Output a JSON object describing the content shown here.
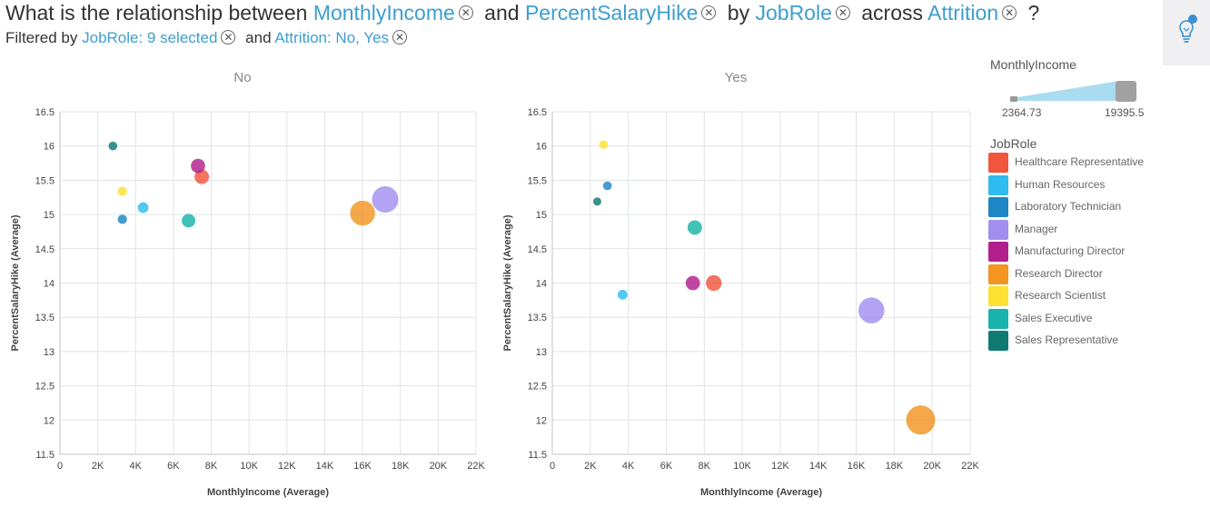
{
  "question": {
    "p1": "What is the relationship between",
    "f1": "MonthlyIncome",
    "p2": "and",
    "f2": "PercentSalaryHike",
    "p3": "by",
    "f3": "JobRole",
    "p4": "across",
    "f4": "Attrition",
    "end": "?"
  },
  "filters": {
    "prefix": "Filtered by",
    "f1": "JobRole: 9 selected",
    "joiner": "and",
    "f2": "Attrition: No, Yes"
  },
  "icons": {
    "remove": "circle-x-icon",
    "insight": "lightbulb-icon"
  },
  "size_legend": {
    "title": "MonthlyIncome",
    "min_label": "2364.73",
    "max_label": "19395.5"
  },
  "color_legend": {
    "title": "JobRole",
    "items": [
      {
        "label": "Healthcare Representative",
        "color": "#f0553d"
      },
      {
        "label": "Human Resources",
        "color": "#2ebbef"
      },
      {
        "label": "Laboratory Technician",
        "color": "#1d86c4"
      },
      {
        "label": "Manager",
        "color": "#a18ff0"
      },
      {
        "label": "Manufacturing Director",
        "color": "#b21f8c"
      },
      {
        "label": "Research Director",
        "color": "#f29521"
      },
      {
        "label": "Research Scientist",
        "color": "#fde030"
      },
      {
        "label": "Sales Executive",
        "color": "#18b3aa"
      },
      {
        "label": "Sales Representative",
        "color": "#0e7a72"
      }
    ]
  },
  "chart_data": [
    {
      "type": "scatter",
      "title": "No",
      "xlabel": "MonthlyIncome (Average)",
      "ylabel": "PercentSalaryHike (Average)",
      "xlim": [
        0,
        22000
      ],
      "ylim": [
        11.5,
        16.5
      ],
      "x_ticks": [
        "0",
        "2K",
        "4K",
        "6K",
        "8K",
        "10K",
        "12K",
        "14K",
        "16K",
        "18K",
        "20K",
        "22K"
      ],
      "y_ticks": [
        "11.5",
        "12",
        "12.5",
        "13",
        "13.5",
        "14",
        "14.5",
        "15",
        "15.5",
        "16",
        "16.5"
      ],
      "grid": true,
      "points": [
        {
          "series": "Healthcare Representative",
          "x": 7500,
          "y": 15.55,
          "size": 7500
        },
        {
          "series": "Human Resources",
          "x": 4400,
          "y": 15.1,
          "size": 4400
        },
        {
          "series": "Laboratory Technician",
          "x": 3300,
          "y": 14.93,
          "size": 3300
        },
        {
          "series": "Manager",
          "x": 17200,
          "y": 15.22,
          "size": 17200
        },
        {
          "series": "Manufacturing Director",
          "x": 7300,
          "y": 15.71,
          "size": 7300
        },
        {
          "series": "Research Director",
          "x": 16000,
          "y": 15.02,
          "size": 16000
        },
        {
          "series": "Research Scientist",
          "x": 3300,
          "y": 15.34,
          "size": 3300
        },
        {
          "series": "Sales Executive",
          "x": 6800,
          "y": 14.91,
          "size": 6800
        },
        {
          "series": "Sales Representative",
          "x": 2800,
          "y": 16.0,
          "size": 2800
        }
      ]
    },
    {
      "type": "scatter",
      "title": "Yes",
      "xlabel": "MonthlyIncome (Average)",
      "ylabel": "PercentSalaryHike (Average)",
      "xlim": [
        0,
        22000
      ],
      "ylim": [
        11.5,
        16.5
      ],
      "x_ticks": [
        "0",
        "2K",
        "4K",
        "6K",
        "8K",
        "10K",
        "12K",
        "14K",
        "16K",
        "18K",
        "20K",
        "22K"
      ],
      "y_ticks": [
        "11.5",
        "12",
        "12.5",
        "13",
        "13.5",
        "14",
        "14.5",
        "15",
        "15.5",
        "16",
        "16.5"
      ],
      "grid": true,
      "points": [
        {
          "series": "Healthcare Representative",
          "x": 8500,
          "y": 14.0,
          "size": 8500
        },
        {
          "series": "Human Resources",
          "x": 3700,
          "y": 13.83,
          "size": 3700
        },
        {
          "series": "Laboratory Technician",
          "x": 2900,
          "y": 15.42,
          "size": 2900
        },
        {
          "series": "Manager",
          "x": 16800,
          "y": 13.6,
          "size": 16800
        },
        {
          "series": "Manufacturing Director",
          "x": 7400,
          "y": 14.0,
          "size": 7400
        },
        {
          "series": "Research Director",
          "x": 19395.5,
          "y": 12.0,
          "size": 19395.5
        },
        {
          "series": "Research Scientist",
          "x": 2700,
          "y": 16.02,
          "size": 2700
        },
        {
          "series": "Sales Executive",
          "x": 7500,
          "y": 14.81,
          "size": 7500
        },
        {
          "series": "Sales Representative",
          "x": 2364.73,
          "y": 15.19,
          "size": 2364.73
        }
      ]
    }
  ]
}
